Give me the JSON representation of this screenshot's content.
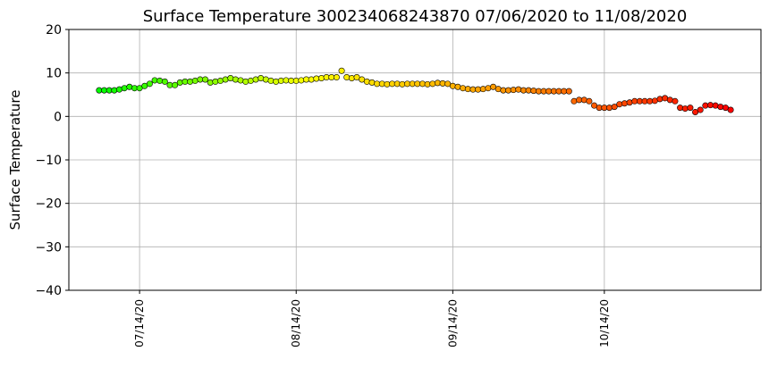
{
  "chart_data": {
    "type": "scatter",
    "title": "Surface Temperature 300234068243870  07/06/2020 to 11/08/2020",
    "y_label": "Surface Temperature",
    "x": [
      "2020-07-06",
      "2020-07-07",
      "2020-07-08",
      "2020-07-09",
      "2020-07-10",
      "2020-07-11",
      "2020-07-12",
      "2020-07-13",
      "2020-07-14",
      "2020-07-15",
      "2020-07-16",
      "2020-07-17",
      "2020-07-18",
      "2020-07-19",
      "2020-07-20",
      "2020-07-21",
      "2020-07-22",
      "2020-07-23",
      "2020-07-24",
      "2020-07-25",
      "2020-07-26",
      "2020-07-27",
      "2020-07-28",
      "2020-07-29",
      "2020-07-30",
      "2020-07-31",
      "2020-08-01",
      "2020-08-02",
      "2020-08-03",
      "2020-08-04",
      "2020-08-05",
      "2020-08-06",
      "2020-08-07",
      "2020-08-08",
      "2020-08-09",
      "2020-08-10",
      "2020-08-11",
      "2020-08-12",
      "2020-08-13",
      "2020-08-14",
      "2020-08-15",
      "2020-08-16",
      "2020-08-17",
      "2020-08-18",
      "2020-08-19",
      "2020-08-20",
      "2020-08-21",
      "2020-08-22",
      "2020-08-23",
      "2020-08-24",
      "2020-08-25",
      "2020-08-26",
      "2020-08-27",
      "2020-08-28",
      "2020-08-29",
      "2020-08-30",
      "2020-08-31",
      "2020-09-01",
      "2020-09-02",
      "2020-09-03",
      "2020-09-04",
      "2020-09-05",
      "2020-09-06",
      "2020-09-07",
      "2020-09-08",
      "2020-09-09",
      "2020-09-10",
      "2020-09-11",
      "2020-09-12",
      "2020-09-13",
      "2020-09-14",
      "2020-09-15",
      "2020-09-16",
      "2020-09-17",
      "2020-09-18",
      "2020-09-19",
      "2020-09-20",
      "2020-09-21",
      "2020-09-22",
      "2020-09-23",
      "2020-09-24",
      "2020-09-25",
      "2020-09-26",
      "2020-09-27",
      "2020-09-28",
      "2020-09-29",
      "2020-09-30",
      "2020-10-01",
      "2020-10-02",
      "2020-10-03",
      "2020-10-04",
      "2020-10-05",
      "2020-10-06",
      "2020-10-07",
      "2020-10-08",
      "2020-10-09",
      "2020-10-10",
      "2020-10-11",
      "2020-10-12",
      "2020-10-13",
      "2020-10-14",
      "2020-10-15",
      "2020-10-16",
      "2020-10-17",
      "2020-10-18",
      "2020-10-19",
      "2020-10-20",
      "2020-10-21",
      "2020-10-22",
      "2020-10-23",
      "2020-10-24",
      "2020-10-25",
      "2020-10-26",
      "2020-10-27",
      "2020-10-28",
      "2020-10-29",
      "2020-10-30",
      "2020-10-31",
      "2020-11-01",
      "2020-11-02",
      "2020-11-03",
      "2020-11-04",
      "2020-11-05",
      "2020-11-06",
      "2020-11-07",
      "2020-11-08"
    ],
    "values": [
      6,
      6,
      6,
      6,
      6.2,
      6.5,
      6.8,
      6.5,
      6.5,
      7,
      7.5,
      8.3,
      8.2,
      8,
      7.2,
      7.2,
      7.8,
      8,
      8,
      8.2,
      8.5,
      8.5,
      7.8,
      8,
      8.2,
      8.5,
      8.8,
      8.5,
      8.3,
      8,
      8.2,
      8.5,
      8.8,
      8.5,
      8.2,
      8,
      8.2,
      8.3,
      8.2,
      8.2,
      8.3,
      8.5,
      8.5,
      8.7,
      8.8,
      9,
      9,
      9,
      10.5,
      9,
      8.8,
      9,
      8.5,
      8,
      7.8,
      7.5,
      7.5,
      7.4,
      7.5,
      7.5,
      7.4,
      7.5,
      7.5,
      7.5,
      7.5,
      7.4,
      7.5,
      7.7,
      7.6,
      7.5,
      7.0,
      6.8,
      6.5,
      6.3,
      6.2,
      6.2,
      6.3,
      6.5,
      6.8,
      6.3,
      6.0,
      6.0,
      6.1,
      6.2,
      6.0,
      6.0,
      5.9,
      5.8,
      5.8,
      5.8,
      5.8,
      5.8,
      5.8,
      5.8,
      3.5,
      3.8,
      3.8,
      3.5,
      2.5,
      2.0,
      2.0,
      2.0,
      2.2,
      2.8,
      3.0,
      3.2,
      3.5,
      3.5,
      3.5,
      3.5,
      3.6,
      4.0,
      4.2,
      3.8,
      3.5,
      2.0,
      1.8,
      2.0,
      1.0,
      1.5,
      2.5,
      2.6,
      2.5,
      2.2,
      2.0,
      1.5
    ],
    "colormap": [
      "#00ff00",
      "#ffff00",
      "#ff8c00",
      "#ff0000"
    ],
    "edge_color": "#000000",
    "xlim": [
      "2020-06-30",
      "2020-11-14"
    ],
    "xticks": [
      {
        "value": "2020-07-14",
        "label": "07/14/20"
      },
      {
        "value": "2020-08-14",
        "label": "08/14/20"
      },
      {
        "value": "2020-09-14",
        "label": "09/14/20"
      },
      {
        "value": "2020-10-14",
        "label": "10/14/20"
      }
    ],
    "ylim": [
      -40,
      20
    ],
    "yticks": [
      {
        "value": -40,
        "label": "−40"
      },
      {
        "value": -30,
        "label": "−30"
      },
      {
        "value": -20,
        "label": "−20"
      },
      {
        "value": -10,
        "label": "−10"
      },
      0,
      10,
      20
    ],
    "grid": true
  }
}
